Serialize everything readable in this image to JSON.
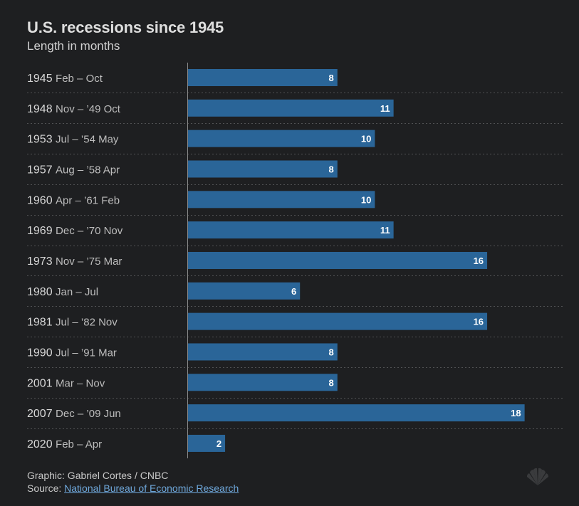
{
  "title": "U.S. recessions since 1945",
  "subtitle": "Length in months",
  "chart_data": {
    "type": "bar",
    "orientation": "horizontal",
    "title": "U.S. recessions since 1945",
    "subtitle": "Length in months",
    "xlim": [
      0,
      20
    ],
    "categories": [
      {
        "year": "1945",
        "range": "Feb – Oct"
      },
      {
        "year": "1948",
        "range": "Nov – ’49 Oct"
      },
      {
        "year": "1953",
        "range": "Jul – ’54 May"
      },
      {
        "year": "1957",
        "range": "Aug – ’58 Apr"
      },
      {
        "year": "1960",
        "range": "Apr – ’61 Feb"
      },
      {
        "year": "1969",
        "range": "Dec – ’70 Nov"
      },
      {
        "year": "1973",
        "range": "Nov – ’75 Mar"
      },
      {
        "year": "1980",
        "range": "Jan – Jul"
      },
      {
        "year": "1981",
        "range": "Jul – ’82 Nov"
      },
      {
        "year": "1990",
        "range": "Jul – ’91 Mar"
      },
      {
        "year": "2001",
        "range": "Mar – Nov"
      },
      {
        "year": "2007",
        "range": "Dec – ’09 Jun"
      },
      {
        "year": "2020",
        "range": "Feb – Apr"
      }
    ],
    "values": [
      8,
      11,
      10,
      8,
      10,
      11,
      16,
      6,
      16,
      8,
      8,
      18,
      2
    ],
    "bar_color": "#2a6598"
  },
  "footer": {
    "credit": "Graphic: Gabriel Cortes / CNBC",
    "source_prefix": "Source: ",
    "source_link": "National Bureau of Economic Research"
  },
  "logo_icon": "cnbc-peacock-icon"
}
